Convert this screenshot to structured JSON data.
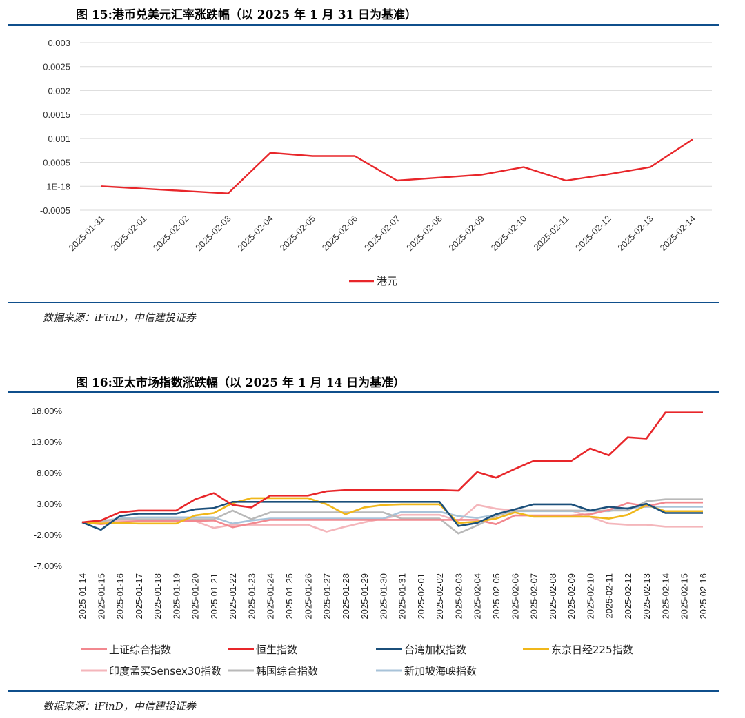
{
  "figure1": {
    "title": "图 15:港币兑美元汇率涨跌幅（以 2025 年  1 月 31 日为基准）",
    "source": "数据来源：iFinD，中信建投证券"
  },
  "figure2": {
    "title": "图 16:亚太市场指数涨跌幅（以 2025 年  1 月 14 日为基准）",
    "source": "数据来源：iFinD，中信建投证券"
  },
  "colors": {
    "rule": "#0f4f8c",
    "hkd": "#e8262a"
  },
  "chart_data": [
    {
      "type": "line",
      "title": "",
      "xlabel": "",
      "ylabel": "",
      "ylim": [
        -0.0005,
        0.003
      ],
      "yticks": [
        "0.003",
        "0.0025",
        "0.002",
        "0.0015",
        "0.001",
        "0.0005",
        "1E-18",
        "-0.0005"
      ],
      "grid": true,
      "legend": "bottom-center",
      "x": [
        "2025-01-31",
        "2025-02-01",
        "2025-02-02",
        "2025-02-03",
        "2025-02-04",
        "2025-02-05",
        "2025-02-06",
        "2025-02-07",
        "2025-02-08",
        "2025-02-09",
        "2025-02-10",
        "2025-02-11",
        "2025-02-12",
        "2025-02-13",
        "2025-02-14"
      ],
      "series": [
        {
          "name": "港元",
          "color": "#e8262a",
          "values": [
            0.0,
            -5e-05,
            -0.0001,
            -0.00015,
            0.0007,
            0.00063,
            0.00063,
            0.00012,
            0.00018,
            0.00024,
            0.0004,
            0.00012,
            0.00025,
            0.0004,
            0.00098
          ]
        }
      ]
    },
    {
      "type": "line",
      "title": "",
      "xlabel": "",
      "ylabel": "",
      "ylim": [
        -7,
        18
      ],
      "yticks": [
        "18.00%",
        "13.00%",
        "8.00%",
        "3.00%",
        "-2.00%",
        "-7.00%"
      ],
      "grid": false,
      "legend": "bottom",
      "x": [
        "2025-01-14",
        "2025-01-15",
        "2025-01-16",
        "2025-01-17",
        "2025-01-18",
        "2025-01-19",
        "2025-01-20",
        "2025-01-21",
        "2025-01-22",
        "2025-01-23",
        "2025-01-24",
        "2025-01-25",
        "2025-01-26",
        "2025-01-27",
        "2025-01-28",
        "2025-01-29",
        "2025-01-30",
        "2025-01-31",
        "2025-02-01",
        "2025-02-02",
        "2025-02-03",
        "2025-02-04",
        "2025-02-05",
        "2025-02-06",
        "2025-02-07",
        "2025-02-08",
        "2025-02-09",
        "2025-02-10",
        "2025-02-11",
        "2025-02-12",
        "2025-02-13",
        "2025-02-14",
        "2025-02-15",
        "2025-02-16"
      ],
      "series": [
        {
          "name": "上证综合指数",
          "color": "#f2888f",
          "values": [
            0,
            -0.3,
            0,
            0.2,
            0.2,
            0.2,
            0.2,
            0.3,
            -0.8,
            -0.2,
            0.4,
            0.4,
            0.4,
            0.4,
            0.4,
            0.4,
            0.4,
            0.4,
            0.4,
            0.4,
            0.4,
            0.4,
            -0.3,
            1.1,
            1.1,
            1.1,
            1.1,
            1.3,
            2.0,
            3.1,
            2.6,
            3.2,
            3.2,
            3.2
          ]
        },
        {
          "name": "恒生指数",
          "color": "#e8262a",
          "values": [
            0,
            0.3,
            1.6,
            1.9,
            1.9,
            1.9,
            3.7,
            4.7,
            2.8,
            2.4,
            4.3,
            4.3,
            4.3,
            5.0,
            5.2,
            5.2,
            5.2,
            5.2,
            5.2,
            5.2,
            5.1,
            8.1,
            7.2,
            8.6,
            9.9,
            9.9,
            9.9,
            11.9,
            10.8,
            13.7,
            13.5,
            17.7,
            17.7,
            17.7
          ]
        },
        {
          "name": "台湾加权指数",
          "color": "#1b4f7a",
          "values": [
            0,
            -1.2,
            1.0,
            1.4,
            1.4,
            1.4,
            2.1,
            2.3,
            3.3,
            3.3,
            3.3,
            3.3,
            3.3,
            3.3,
            3.3,
            3.3,
            3.3,
            3.3,
            3.3,
            3.3,
            -0.6,
            -0.1,
            1.3,
            2.1,
            2.9,
            2.9,
            2.9,
            1.9,
            2.5,
            2.2,
            3.0,
            1.5,
            1.5,
            1.5
          ]
        },
        {
          "name": "东京日经225指数",
          "color": "#f0b71a",
          "values": [
            0,
            -0.2,
            -0.1,
            -0.2,
            -0.2,
            -0.2,
            1.1,
            1.5,
            3.1,
            3.9,
            3.9,
            3.9,
            3.9,
            2.9,
            1.3,
            2.4,
            2.8,
            2.9,
            2.9,
            2.9,
            -0.1,
            0.1,
            0.6,
            1.6,
            0.9,
            0.9,
            0.9,
            0.9,
            0.6,
            1.2,
            2.8,
            1.8,
            1.8,
            1.8
          ]
        },
        {
          "name": "印度孟买Sensex30指数",
          "color": "#f4b6bb",
          "values": [
            0,
            0,
            0.2,
            0.2,
            0.2,
            0.2,
            0.2,
            -0.9,
            -0.4,
            -0.4,
            -0.4,
            -0.4,
            -0.4,
            -1.5,
            -0.7,
            0.0,
            0.6,
            1.2,
            1.2,
            1.2,
            0.2,
            2.8,
            2.2,
            1.9,
            1.9,
            1.9,
            1.9,
            0.9,
            -0.2,
            -0.4,
            -0.4,
            -0.7,
            -0.7,
            -0.7
          ]
        },
        {
          "name": "韩国综合指数",
          "color": "#b9b9b9",
          "values": [
            0,
            0.2,
            0.5,
            0.5,
            0.5,
            0.5,
            0.5,
            0.5,
            1.9,
            0.5,
            1.6,
            1.6,
            1.6,
            1.6,
            1.6,
            1.6,
            1.6,
            0.6,
            0.6,
            0.6,
            -1.8,
            -0.5,
            1.0,
            1.9,
            1.9,
            1.9,
            1.9,
            1.9,
            1.9,
            1.9,
            3.4,
            3.7,
            3.7,
            3.7
          ]
        },
        {
          "name": "新加坡海峡指数",
          "color": "#a8c3d9",
          "values": [
            0,
            0.2,
            0.6,
            0.8,
            0.8,
            0.8,
            0.8,
            0.8,
            -0.2,
            0.3,
            0.6,
            0.6,
            0.6,
            0.6,
            0.6,
            0.6,
            0.6,
            1.7,
            1.7,
            1.7,
            1.0,
            0.7,
            1.2,
            1.8,
            1.8,
            1.8,
            1.8,
            1.8,
            1.8,
            2.3,
            2.5,
            2.5,
            2.5,
            2.5
          ]
        }
      ]
    }
  ]
}
